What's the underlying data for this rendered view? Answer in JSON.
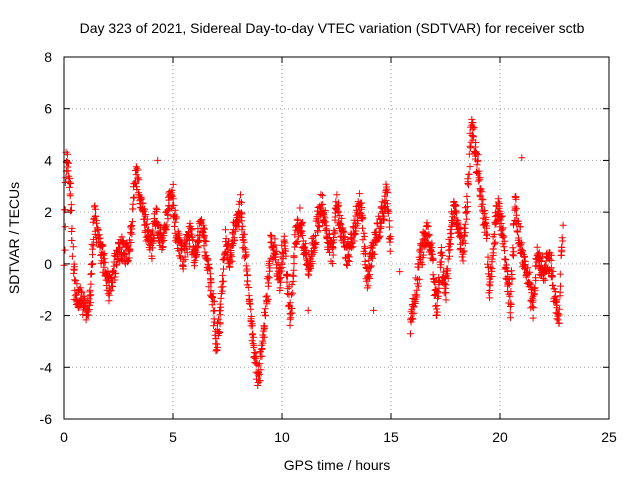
{
  "chart_data": {
    "type": "scatter",
    "title": "Day 323 of 2021, Sidereal Day-to-day VTEC variation (SDTVAR) for receiver sctb",
    "xlabel": "GPS time / hours",
    "ylabel": "SDTVAR / TECUs",
    "xlim": [
      0,
      25
    ],
    "ylim": [
      -6,
      8
    ],
    "xticks": [
      0,
      5,
      10,
      15,
      20,
      25
    ],
    "yticks": [
      -6,
      -4,
      -2,
      0,
      2,
      4,
      6,
      8
    ],
    "grid": true,
    "marker": "plus",
    "color": "#ff0000",
    "trend": [
      [
        0.0,
        -0.2
      ],
      [
        0.1,
        3.8
      ],
      [
        0.15,
        4.2
      ],
      [
        0.2,
        3.5
      ],
      [
        0.3,
        2.9
      ],
      [
        0.4,
        0.5
      ],
      [
        0.5,
        -1.0
      ],
      [
        0.7,
        -1.3
      ],
      [
        1.0,
        -1.7
      ],
      [
        1.2,
        -1.4
      ],
      [
        1.4,
        1.8
      ],
      [
        1.6,
        0.8
      ],
      [
        1.8,
        0.2
      ],
      [
        2.1,
        -1.0
      ],
      [
        2.3,
        -0.2
      ],
      [
        2.6,
        0.6
      ],
      [
        2.9,
        0.3
      ],
      [
        3.1,
        1.2
      ],
      [
        3.25,
        3.6
      ],
      [
        3.4,
        3.2
      ],
      [
        3.6,
        2.1
      ],
      [
        3.8,
        1.4
      ],
      [
        4.0,
        0.6
      ],
      [
        4.2,
        1.8
      ],
      [
        4.5,
        0.7
      ],
      [
        4.8,
        2.4
      ],
      [
        5.0,
        2.7
      ],
      [
        5.2,
        0.8
      ],
      [
        5.5,
        0.3
      ],
      [
        5.8,
        1.2
      ],
      [
        6.0,
        0.2
      ],
      [
        6.3,
        1.6
      ],
      [
        6.5,
        0.5
      ],
      [
        6.8,
        -1.2
      ],
      [
        7.0,
        -3.3
      ],
      [
        7.2,
        -1.5
      ],
      [
        7.4,
        0.8
      ],
      [
        7.6,
        0.2
      ],
      [
        7.9,
        1.6
      ],
      [
        8.1,
        2.3
      ],
      [
        8.3,
        0.3
      ],
      [
        8.5,
        -1.5
      ],
      [
        8.7,
        -3.0
      ],
      [
        8.9,
        -4.6
      ],
      [
        9.1,
        -3.2
      ],
      [
        9.3,
        -1.5
      ],
      [
        9.5,
        0.8
      ],
      [
        9.7,
        0.4
      ],
      [
        9.9,
        -0.8
      ],
      [
        10.1,
        1.0
      ],
      [
        10.4,
        -2.3
      ],
      [
        10.6,
        0.8
      ],
      [
        10.8,
        1.9
      ],
      [
        11.0,
        0.8
      ],
      [
        11.2,
        -0.3
      ],
      [
        11.5,
        1.0
      ],
      [
        11.8,
        2.3
      ],
      [
        12.0,
        1.4
      ],
      [
        12.3,
        0.4
      ],
      [
        12.5,
        2.5
      ],
      [
        12.7,
        1.3
      ],
      [
        13.0,
        0.3
      ],
      [
        13.3,
        1.2
      ],
      [
        13.6,
        2.5
      ],
      [
        13.9,
        -0.6
      ],
      [
        14.2,
        0.8
      ],
      [
        14.5,
        1.6
      ],
      [
        14.8,
        2.8
      ],
      [
        15.0,
        0.5
      ],
      [
        15.9,
        -2.4
      ],
      [
        16.1,
        -1.4
      ],
      [
        16.3,
        0.0
      ],
      [
        16.5,
        0.9
      ],
      [
        16.7,
        1.3
      ],
      [
        16.9,
        0.2
      ],
      [
        17.1,
        -1.8
      ],
      [
        17.3,
        0.3
      ],
      [
        17.5,
        -1.2
      ],
      [
        17.7,
        1.0
      ],
      [
        17.9,
        2.1
      ],
      [
        18.1,
        1.5
      ],
      [
        18.3,
        0.3
      ],
      [
        18.5,
        2.5
      ],
      [
        18.6,
        3.8
      ],
      [
        18.7,
        5.6
      ],
      [
        18.8,
        4.9
      ],
      [
        19.0,
        3.6
      ],
      [
        19.2,
        2.1
      ],
      [
        19.4,
        1.2
      ],
      [
        19.5,
        -1.0
      ],
      [
        19.7,
        0.6
      ],
      [
        19.9,
        2.3
      ],
      [
        20.1,
        1.3
      ],
      [
        20.3,
        -0.4
      ],
      [
        20.5,
        -1.6
      ],
      [
        20.7,
        2.5
      ],
      [
        20.9,
        1.0
      ],
      [
        21.1,
        0.2
      ],
      [
        21.3,
        -0.6
      ],
      [
        21.5,
        -1.7
      ],
      [
        21.7,
        0.3
      ],
      [
        21.9,
        -0.1
      ],
      [
        22.1,
        -0.2
      ],
      [
        22.3,
        0.1
      ],
      [
        22.5,
        -1.3
      ],
      [
        22.7,
        -2.3
      ],
      [
        22.8,
        0.5
      ],
      [
        22.9,
        1.4
      ]
    ],
    "isolated_points": [
      [
        4.3,
        4.0
      ],
      [
        15.4,
        -0.3
      ],
      [
        21.0,
        4.1
      ],
      [
        11.2,
        -1.8
      ],
      [
        14.2,
        -1.8
      ]
    ]
  }
}
